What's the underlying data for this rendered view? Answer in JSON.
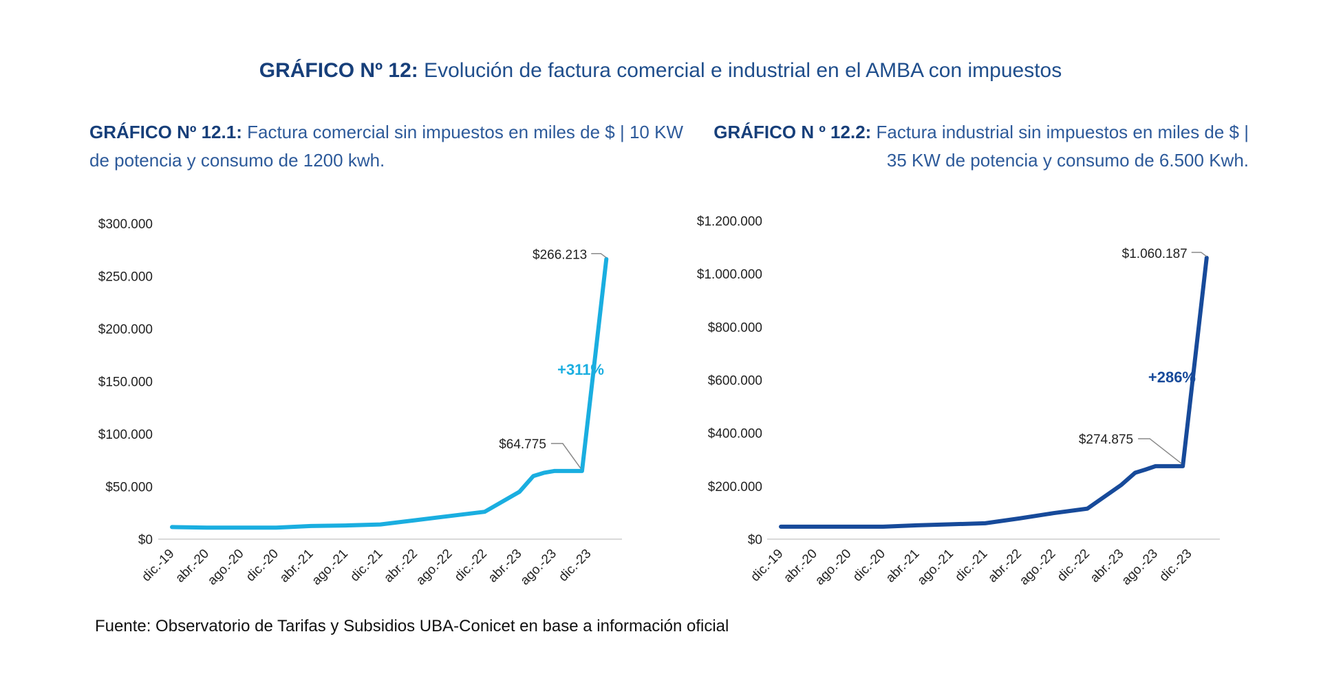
{
  "header": {
    "title_bold": "GRÁFICO Nº 12:",
    "title_rest": " Evolución de factura comercial e industrial en el AMBA con impuestos"
  },
  "charts": [
    {
      "subtitle_bold": "GRÁFICO Nº 12.1:",
      "subtitle_rest": " Factura comercial sin impuestos en miles de $ | 10 KW de potencia y consumo de 1200 kwh.",
      "color": "#1aaee0"
    },
    {
      "subtitle_bold": "GRÁFICO N º 12.2:",
      "subtitle_rest": " Factura industrial sin impuestos en miles de $ | 35 KW de potencia y consumo de 6.500 Kwh.",
      "color": "#174a9a"
    }
  ],
  "footer": {
    "source": "Fuente: Observatorio de Tarifas y Subsidios UBA-Conicet en base a información oficial"
  },
  "chart_data": [
    {
      "type": "line",
      "title": "GRÁFICO Nº 12.1: Factura comercial sin impuestos en miles de $ | 10 KW de potencia y consumo de 1200 kwh.",
      "xlabel": "",
      "ylabel": "",
      "ylim": [
        0,
        300000
      ],
      "yticks": [
        "$0",
        "$50.000",
        "$100.000",
        "$150.000",
        "$200.000",
        "$250.000",
        "$300.000"
      ],
      "categories": [
        "dic.-19",
        "abr.-20",
        "ago.-20",
        "dic.-20",
        "abr.-21",
        "ago.-21",
        "dic.-21",
        "abr.-22",
        "ago.-22",
        "dic.-22",
        "abr.-23",
        "ago.-23",
        "dic.-23"
      ],
      "x": [
        0,
        1,
        2,
        3,
        4,
        5,
        6,
        7,
        8,
        9,
        10,
        10.4,
        10.7,
        11,
        11.8,
        12.5
      ],
      "values": [
        11500,
        11000,
        11000,
        11000,
        12500,
        13000,
        14000,
        18000,
        22000,
        26000,
        45000,
        60000,
        63000,
        64775,
        64775,
        266213
      ],
      "series": [
        {
          "name": "Factura comercial",
          "color": "#1aaee0"
        }
      ],
      "annotations": [
        {
          "text": "$266.213",
          "point": "last"
        },
        {
          "text": "$64.775",
          "point": "plateau"
        },
        {
          "text": "+311%",
          "color": "#1aaee0"
        }
      ],
      "grid": false,
      "legend": "none"
    },
    {
      "type": "line",
      "title": "GRÁFICO N º 12.2: Factura industrial sin impuestos en miles de $ | 35 KW de potencia y consumo de 6.500 Kwh.",
      "xlabel": "",
      "ylabel": "",
      "ylim": [
        0,
        1200000
      ],
      "yticks": [
        "$0",
        "$200.000",
        "$400.000",
        "$600.000",
        "$800.000",
        "$1.000.000",
        "$1.200.000"
      ],
      "categories": [
        "dic.-19",
        "abr.-20",
        "ago.-20",
        "dic.-20",
        "abr.-21",
        "ago.-21",
        "dic.-21",
        "abr.-22",
        "ago.-22",
        "dic.-22",
        "abr.-23",
        "ago.-23",
        "dic.-23"
      ],
      "x": [
        0,
        1,
        2,
        3,
        4,
        5,
        6,
        7,
        8,
        9,
        10,
        10.4,
        10.7,
        11,
        11.8,
        12.5
      ],
      "values": [
        47000,
        47000,
        47000,
        47000,
        52000,
        56000,
        60000,
        78000,
        98000,
        115000,
        205000,
        250000,
        262000,
        274875,
        274875,
        1060187
      ],
      "series": [
        {
          "name": "Factura industrial",
          "color": "#174a9a"
        }
      ],
      "annotations": [
        {
          "text": "$1.060.187",
          "point": "last"
        },
        {
          "text": "$274.875",
          "point": "plateau"
        },
        {
          "text": "+286%",
          "color": "#174a9a"
        }
      ],
      "grid": false,
      "legend": "none"
    }
  ]
}
